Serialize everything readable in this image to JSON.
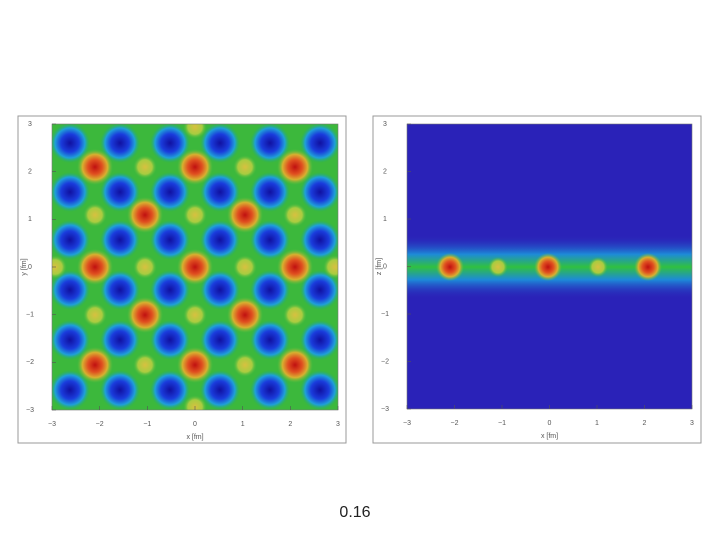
{
  "chart_data": [
    {
      "type": "density",
      "xlabel": "x [fm]",
      "ylabel": "y [fm]",
      "xlim": [
        -3,
        3
      ],
      "ylim": [
        -3,
        3
      ],
      "xticks": [
        {
          "value": -3,
          "label": "−3"
        },
        {
          "value": -2,
          "label": "−2"
        },
        {
          "value": -1,
          "label": "−1"
        },
        0,
        1,
        2,
        3
      ],
      "yticks": [
        {
          "value": -3,
          "label": "−3"
        },
        {
          "value": -2,
          "label": "−2"
        },
        {
          "value": -1,
          "label": "−1"
        },
        0,
        1,
        2,
        3
      ]
    },
    {
      "type": "density",
      "xlabel": "x [fm]",
      "ylabel": "z [fm]",
      "xlim": [
        -3,
        3
      ],
      "ylim": [
        -3,
        3
      ],
      "xticks": [
        {
          "value": -3,
          "label": "−3"
        },
        {
          "value": -2,
          "label": "−2"
        },
        {
          "value": -1,
          "label": "−1"
        },
        0,
        1,
        2,
        3
      ],
      "yticks": [
        {
          "value": -3,
          "label": "−3"
        },
        {
          "value": -2,
          "label": "−2"
        },
        {
          "value": -1,
          "label": "−1"
        },
        0,
        1,
        2,
        3
      ]
    }
  ],
  "footer": "0.16"
}
